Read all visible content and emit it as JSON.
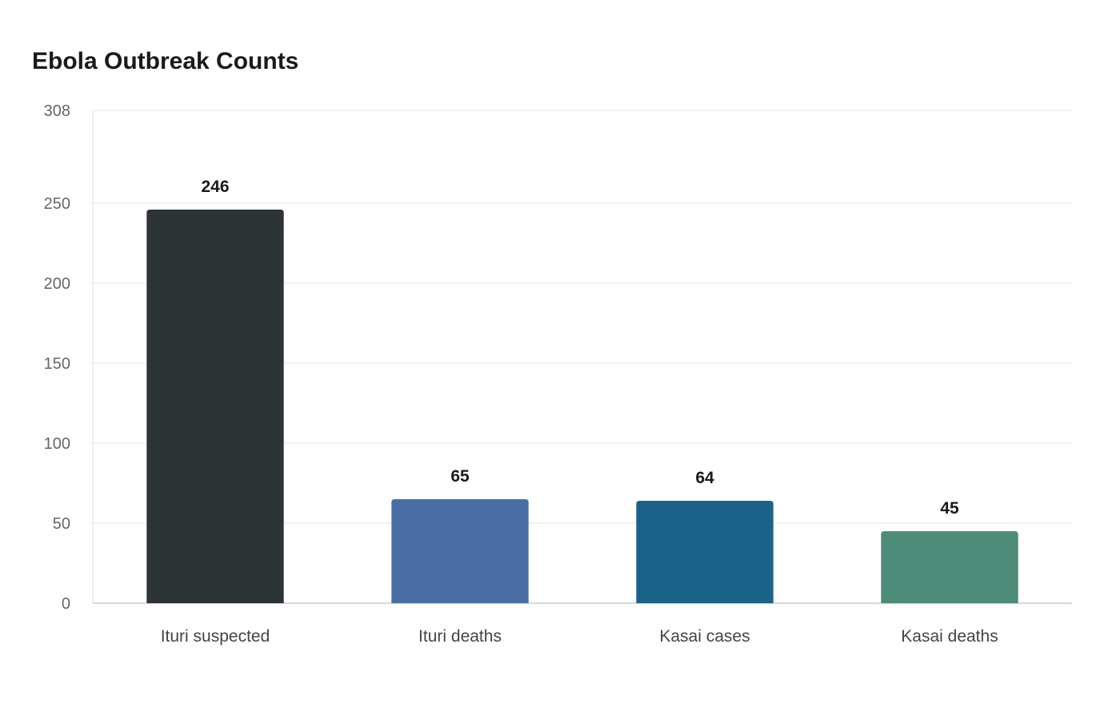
{
  "chart_data": {
    "type": "bar",
    "title": "Ebola Outbreak Counts",
    "xlabel": "",
    "ylabel": "",
    "categories": [
      "Ituri suspected",
      "Ituri deaths",
      "Kasai cases",
      "Kasai deaths"
    ],
    "values": [
      246,
      65,
      64,
      45
    ],
    "colors": [
      "#2d3436",
      "#4a6fa5",
      "#1b6289",
      "#4e8c7a"
    ],
    "ylim": [
      0,
      308
    ],
    "yticks": [
      0,
      50,
      100,
      150,
      200,
      250,
      308
    ],
    "grid": true,
    "legend": "none"
  }
}
